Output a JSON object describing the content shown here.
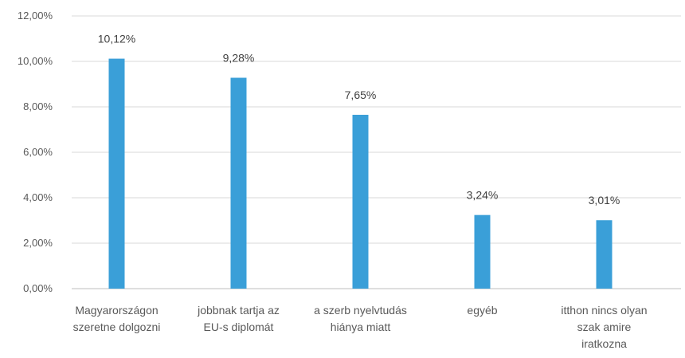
{
  "chart_data": {
    "type": "bar",
    "title": "",
    "xlabel": "",
    "ylabel": "",
    "categories": [
      [
        "Magyarországon",
        "szeretne dolgozni"
      ],
      [
        "jobbnak tartja az",
        "EU-s diplomát"
      ],
      [
        "a szerb nyelvtudás",
        "hiánya miatt"
      ],
      [
        "egyéb"
      ],
      [
        "itthon nincs olyan",
        "szak amire",
        "iratkozna"
      ]
    ],
    "values": [
      10.12,
      9.28,
      7.65,
      3.24,
      3.01
    ],
    "data_labels": [
      "10,12%",
      "9,28%",
      "7,65%",
      "3,24%",
      "3,01%"
    ],
    "ylim": [
      0,
      12
    ],
    "yticks": [
      0,
      2,
      4,
      6,
      8,
      10,
      12
    ],
    "ytick_labels": [
      "0,00%",
      "2,00%",
      "4,00%",
      "6,00%",
      "8,00%",
      "10,00%",
      "12,00%"
    ],
    "grid": true,
    "legend": "none",
    "colors": {
      "bar": "#3a9fd8"
    }
  }
}
